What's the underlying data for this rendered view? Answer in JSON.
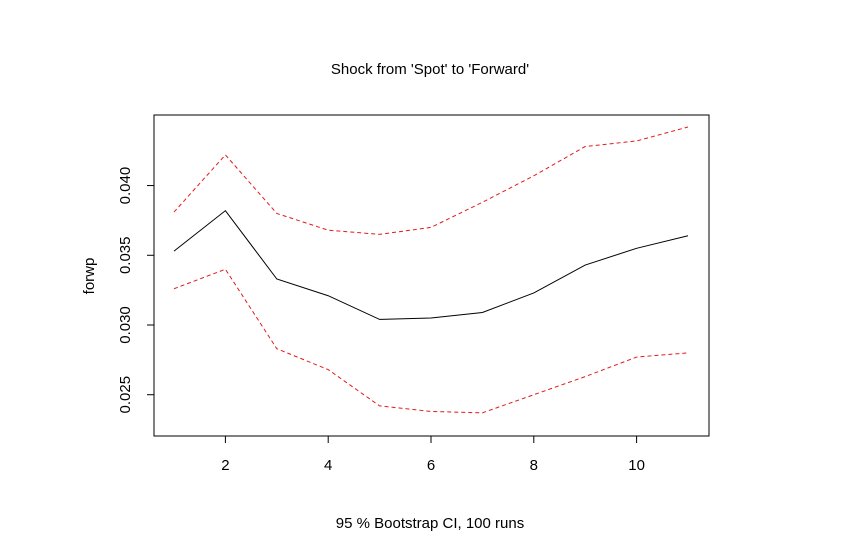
{
  "chart_data": {
    "type": "line",
    "title": "Shock from 'Spot' to 'Forward'",
    "xlabel": "95 % Bootstrap CI,  100 runs",
    "ylabel": "forwp",
    "x": [
      1,
      2,
      3,
      4,
      5,
      6,
      7,
      8,
      9,
      10,
      11
    ],
    "xlim": [
      1,
      11
    ],
    "ylim": [
      0.0229,
      0.0442
    ],
    "x_ticks": [
      2,
      4,
      6,
      8,
      10
    ],
    "x_tick_labels": [
      "2",
      "4",
      "6",
      "8",
      "10"
    ],
    "y_ticks": [
      0.025,
      0.03,
      0.035,
      0.04
    ],
    "y_tick_labels": [
      "0.025",
      "0.030",
      "0.035",
      "0.040"
    ],
    "grid": false,
    "legend": "none",
    "series": [
      {
        "role": "estimate",
        "style": "solid",
        "color": "#000000",
        "values": [
          0.0353,
          0.0382,
          0.0333,
          0.0321,
          0.0304,
          0.0305,
          0.0309,
          0.0323,
          0.0343,
          0.0355,
          0.0364
        ]
      },
      {
        "role": "upper",
        "style": "dashed",
        "color": "#e31a1c",
        "values": [
          0.0381,
          0.0422,
          0.038,
          0.0368,
          0.0365,
          0.037,
          0.0388,
          0.0407,
          0.0428,
          0.0432,
          0.0442
        ]
      },
      {
        "role": "lower",
        "style": "dashed",
        "color": "#e31a1c",
        "values": [
          0.0326,
          0.034,
          0.0283,
          0.0268,
          0.0242,
          0.0238,
          0.0237,
          0.025,
          0.0263,
          0.0277,
          0.028
        ]
      }
    ]
  }
}
